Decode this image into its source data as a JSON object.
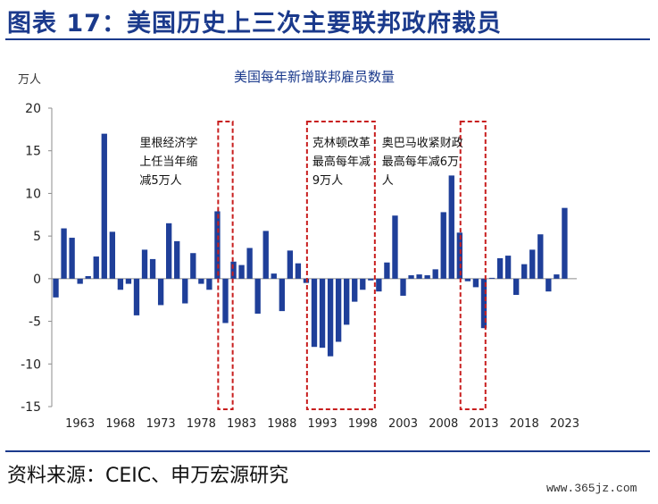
{
  "figure": {
    "title": "图表 17：美国历史上三次主要联邦政府裁员",
    "source": "资料来源：CEIC、申万宏源研究",
    "watermark": "www.365jz.com"
  },
  "colors": {
    "bar": "#1f3f99",
    "box": "#c81e1e",
    "title": "#1b3a8c",
    "rule": "#1b3a8c"
  },
  "chart_data": {
    "type": "bar",
    "title": "美国每年新增联邦雇员数量",
    "ylabel": "万人",
    "ylim": [
      -15,
      20
    ],
    "yticks": [
      20,
      15,
      10,
      5,
      0,
      -5,
      -10,
      -15
    ],
    "xticks": [
      "1963",
      "1968",
      "1973",
      "1978",
      "1983",
      "1988",
      "1993",
      "1998",
      "2003",
      "2008",
      "2013",
      "2018",
      "2023"
    ],
    "x_start": 1960,
    "x_end": 2024,
    "series": [
      {
        "x": [
          1960,
          1961,
          1962,
          1963,
          1964,
          1965,
          1966,
          1967,
          1968,
          1969,
          1970,
          1971,
          1972,
          1973,
          1974,
          1975,
          1976,
          1977,
          1978,
          1979,
          1980,
          1981,
          1982,
          1983,
          1984,
          1985,
          1986,
          1987,
          1988,
          1989,
          1990,
          1991,
          1992,
          1993,
          1994,
          1995,
          1996,
          1997,
          1998,
          1999,
          2000,
          2001,
          2002,
          2003,
          2004,
          2005,
          2006,
          2007,
          2008,
          2009,
          2010,
          2011,
          2012,
          2013,
          2014,
          2015,
          2016,
          2017,
          2018,
          2019,
          2020,
          2021,
          2022,
          2023,
          2024
        ],
        "values": [
          -2.2,
          5.9,
          4.8,
          -0.6,
          0.3,
          2.6,
          17.0,
          5.5,
          -1.3,
          -0.6,
          -4.3,
          3.4,
          2.3,
          -3.1,
          6.5,
          4.4,
          -2.9,
          3.0,
          -0.6,
          -1.3,
          7.9,
          -5.2,
          2.0,
          1.6,
          3.6,
          -4.1,
          5.6,
          0.6,
          -3.8,
          3.3,
          1.8,
          -0.5,
          -8.0,
          -8.1,
          -9.1,
          -7.4,
          -5.4,
          -2.7,
          -1.3,
          -0.2,
          -1.5,
          1.9,
          7.4,
          -2.0,
          0.4,
          0.5,
          0.4,
          1.1,
          7.8,
          12.1,
          5.4,
          -0.3,
          -1.0,
          -5.8,
          0.1,
          2.4,
          2.7,
          -1.9,
          1.7,
          3.4,
          5.2,
          -1.5,
          0.5,
          8.3,
          0.0
        ]
      }
    ],
    "annotations": [
      {
        "lines": [
          "里根经济学",
          "上任当年缩",
          "减5万人"
        ],
        "x_from": 1980.6,
        "x_to": 1982.4
      },
      {
        "lines": [
          "克林顿改革",
          "最高每年减",
          "9万人"
        ],
        "x_from": 1991.6,
        "x_to": 2000.0
      },
      {
        "lines": [
          "奥巴马收紧财政",
          "最高每年减6万",
          "人"
        ],
        "x_from": 2010.6,
        "x_to": 2013.7
      }
    ]
  }
}
